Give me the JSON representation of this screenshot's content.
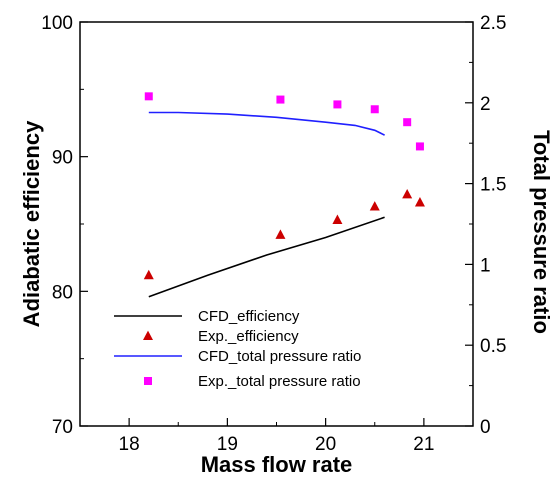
{
  "chart_data": {
    "type": "line",
    "xlabel": "Mass flow rate",
    "ylabel_left": "Adiabatic efficiency",
    "ylabel_right": "Total pressure ratio",
    "xlim": [
      17.5,
      21.5
    ],
    "ylim_left": [
      70,
      100
    ],
    "ylim_right": [
      0,
      2.5
    ],
    "x_ticks": [
      "18",
      "19",
      "20",
      "21"
    ],
    "y_left_ticks": [
      "70",
      "80",
      "90",
      "100"
    ],
    "y_right_ticks": [
      "0",
      "0.5",
      "1",
      "1.5",
      "2",
      "2.5"
    ],
    "grid": false,
    "legend_position": "bottom-left",
    "series": [
      {
        "name": "CFD_efficiency",
        "axis": "left",
        "style": "line",
        "color": "#000000",
        "x": [
          18.2,
          18.8,
          19.4,
          20.0,
          20.6
        ],
        "y": [
          79.6,
          81.2,
          82.7,
          84.0,
          85.5
        ]
      },
      {
        "name": "Exp._efficiency",
        "axis": "left",
        "style": "triangle",
        "color": "#cc0000",
        "x": [
          18.2,
          19.54,
          20.12,
          20.5,
          20.83,
          20.96
        ],
        "y": [
          81.2,
          84.2,
          85.3,
          86.3,
          87.2,
          86.6
        ]
      },
      {
        "name": "CFD_total pressure ratio",
        "axis": "right",
        "style": "line",
        "color": "#2020ff",
        "x": [
          18.2,
          18.5,
          19.0,
          19.5,
          20.0,
          20.3,
          20.5,
          20.6
        ],
        "y": [
          1.94,
          1.94,
          1.93,
          1.91,
          1.88,
          1.86,
          1.83,
          1.8
        ]
      },
      {
        "name": "Exp._total pressure ratio",
        "axis": "right",
        "style": "square",
        "color": "#ff00ff",
        "x": [
          18.2,
          19.54,
          20.12,
          20.5,
          20.83,
          20.96
        ],
        "y": [
          2.04,
          2.02,
          1.99,
          1.96,
          1.88,
          1.73
        ]
      }
    ]
  }
}
